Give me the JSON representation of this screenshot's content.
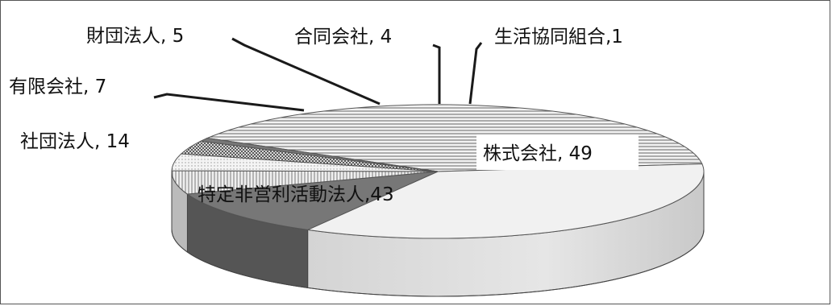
{
  "chart_data": {
    "type": "pie",
    "title": "",
    "slices": [
      {
        "name": "株式会社",
        "value": 49,
        "label": "株式会社, 49",
        "pattern": "hlines"
      },
      {
        "name": "特定非営利活動法人",
        "value": 43,
        "label": "特定非営利活動法人,43",
        "pattern": "plain"
      },
      {
        "name": "社団法人",
        "value": 14,
        "label": "社団法人, 14",
        "pattern": "dark"
      },
      {
        "name": "有限会社",
        "value": 7,
        "label": "有限会社, 7",
        "pattern": "vlines"
      },
      {
        "name": "財団法人",
        "value": 5,
        "label": "財団法人, 5",
        "pattern": "dots"
      },
      {
        "name": "合同会社",
        "value": 4,
        "label": "合同会社, 4",
        "pattern": "check"
      },
      {
        "name": "生活協同組合",
        "value": 1,
        "label": "生活協同組合,1",
        "pattern": "dark"
      }
    ],
    "style": "3d-pie",
    "legend": "none"
  }
}
